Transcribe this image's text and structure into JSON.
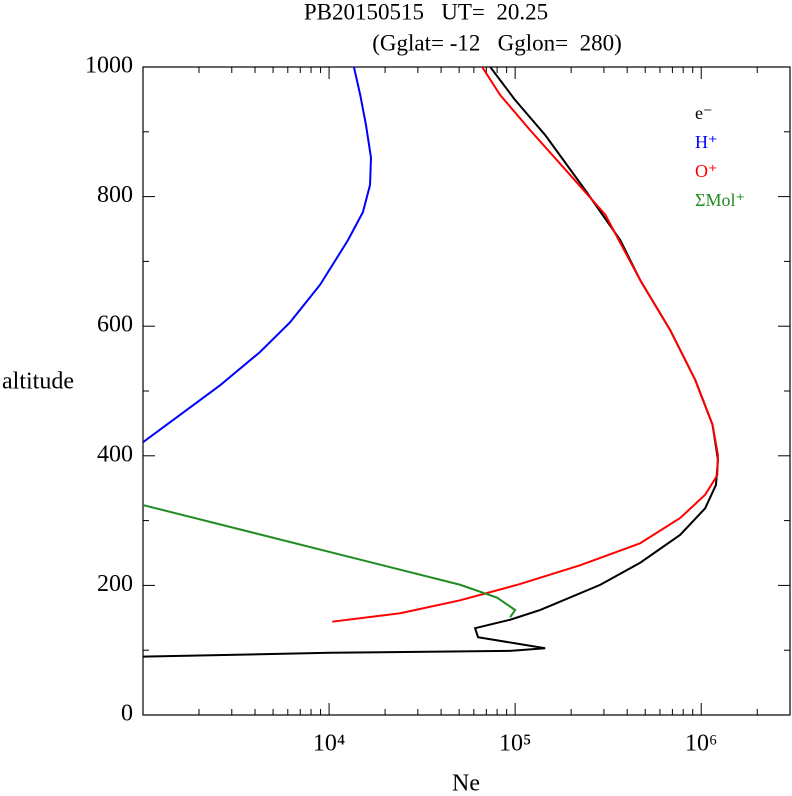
{
  "chart_data": {
    "type": "line",
    "title": "PB20150515   UT=  20.25",
    "subtitle": "(Gglat= -12   Gglon=  280)",
    "x_label": "Ne",
    "y_label": "altitude",
    "x_log": true,
    "xlim": [
      1000,
      3000000
    ],
    "ylim": [
      0,
      1000
    ],
    "xticks": [
      {
        "value": 10000,
        "label": "10⁴"
      },
      {
        "value": 100000,
        "label": "10⁵"
      },
      {
        "value": 1000000,
        "label": "10⁶"
      }
    ],
    "x_minor_ticks": [
      2000,
      3000,
      4000,
      5000,
      6000,
      7000,
      8000,
      9000,
      20000,
      30000,
      40000,
      50000,
      60000,
      70000,
      80000,
      90000,
      200000,
      300000,
      400000,
      500000,
      600000,
      700000,
      800000,
      900000,
      2000000,
      3000000
    ],
    "yticks": [
      0,
      200,
      400,
      600,
      800,
      1000
    ],
    "y_minor_ticks": [
      100,
      300,
      500,
      700,
      900
    ],
    "legend_position": "top-right",
    "series": [
      {
        "name": "e⁻",
        "color": "#000000",
        "x": [
          1000,
          10100,
          94000,
          145000,
          63200,
          60900,
          94000,
          136000,
          168000,
          287000,
          470000,
          771000,
          1050000,
          1200000,
          1230000,
          1150000,
          929000,
          681000,
          470000,
          367000,
          238000,
          145000,
          100000,
          73500
        ],
        "values": [
          90,
          96,
          99,
          103,
          120,
          134,
          147,
          162,
          173,
          201,
          235,
          278,
          319,
          355,
          394,
          448,
          517,
          594,
          671,
          733,
          810,
          895,
          949,
          1000
        ]
      },
      {
        "name": "H⁺",
        "color": "#0000ff",
        "x": [
          1000,
          1580,
          2600,
          4250,
          6170,
          8950,
          12650,
          15200,
          16600,
          16800,
          15800,
          14700,
          13600
        ],
        "values": [
          421,
          463,
          509,
          560,
          606,
          664,
          733,
          776,
          818,
          860,
          910,
          957,
          1000
        ]
      },
      {
        "name": "O⁺",
        "color": "#ff0000",
        "x": [
          10400,
          24100,
          50600,
          106000,
          223000,
          470000,
          771000,
          1050000,
          1220000,
          1230000,
          1150000,
          929000,
          681000,
          470000,
          305000,
          198000,
          120000,
          83000,
          66500
        ],
        "values": [
          144,
          157,
          177,
          202,
          231,
          265,
          304,
          340,
          370,
          401,
          448,
          517,
          594,
          671,
          772,
          833,
          903,
          957,
          1000
        ]
      },
      {
        "name": "ΣMol⁺",
        "color": "#228b22",
        "x": [
          1000,
          50600,
          80000,
          100000,
          94000
        ],
        "values": [
          324,
          201,
          181,
          162,
          151
        ]
      }
    ]
  }
}
